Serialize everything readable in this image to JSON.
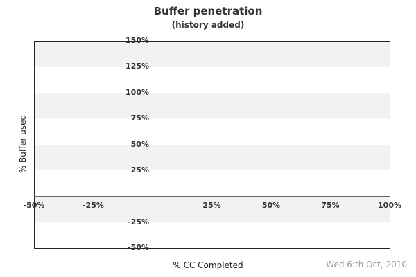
{
  "chart": {
    "title": "Buffer penetration",
    "subtitle": "(history added)",
    "footer_date": "Wed 6:th Oct, 2010",
    "x_axis": {
      "label": "% CC Completed",
      "min": -50,
      "max": 100,
      "ticks": [
        {
          "value": -50,
          "label": "-50%"
        },
        {
          "value": -25,
          "label": "-25%"
        },
        {
          "value": 25,
          "label": "25%"
        },
        {
          "value": 50,
          "label": "50%"
        },
        {
          "value": 75,
          "label": "75%"
        },
        {
          "value": 100,
          "label": "100%"
        }
      ]
    },
    "y_axis": {
      "label": "% Buffer used",
      "min": -50,
      "max": 150,
      "ticks": [
        {
          "value": 150,
          "label": "150%"
        },
        {
          "value": 125,
          "label": "125%"
        },
        {
          "value": 100,
          "label": "100%"
        },
        {
          "value": 75,
          "label": "75%"
        },
        {
          "value": 50,
          "label": "50%"
        },
        {
          "value": 25,
          "label": "25%"
        },
        {
          "value": -25,
          "label": "-25%"
        },
        {
          "value": -50,
          "label": "-50%"
        }
      ]
    },
    "colors": {
      "band_gray": "#f2f2f2",
      "band_white": "#ffffff",
      "border": "#222222",
      "zero_lines": "#666666",
      "text": "#333333",
      "date_text": "#999999"
    }
  },
  "chart_data": {
    "type": "line",
    "title": "Buffer penetration",
    "subtitle": "(history added)",
    "xlabel": "% CC Completed",
    "ylabel": "% Buffer used",
    "xlim": [
      -50,
      100
    ],
    "ylim": [
      -50,
      150
    ],
    "x_tick_values": [
      -50,
      -25,
      25,
      50,
      75,
      100
    ],
    "y_tick_values": [
      150,
      125,
      100,
      75,
      50,
      25,
      -25,
      -50
    ],
    "series": [],
    "legend_position": "none",
    "grid": "alternating horizontal bands every 25%, axes crossing at 0,0",
    "annotation_date": "Wed 6:th Oct, 2010"
  }
}
